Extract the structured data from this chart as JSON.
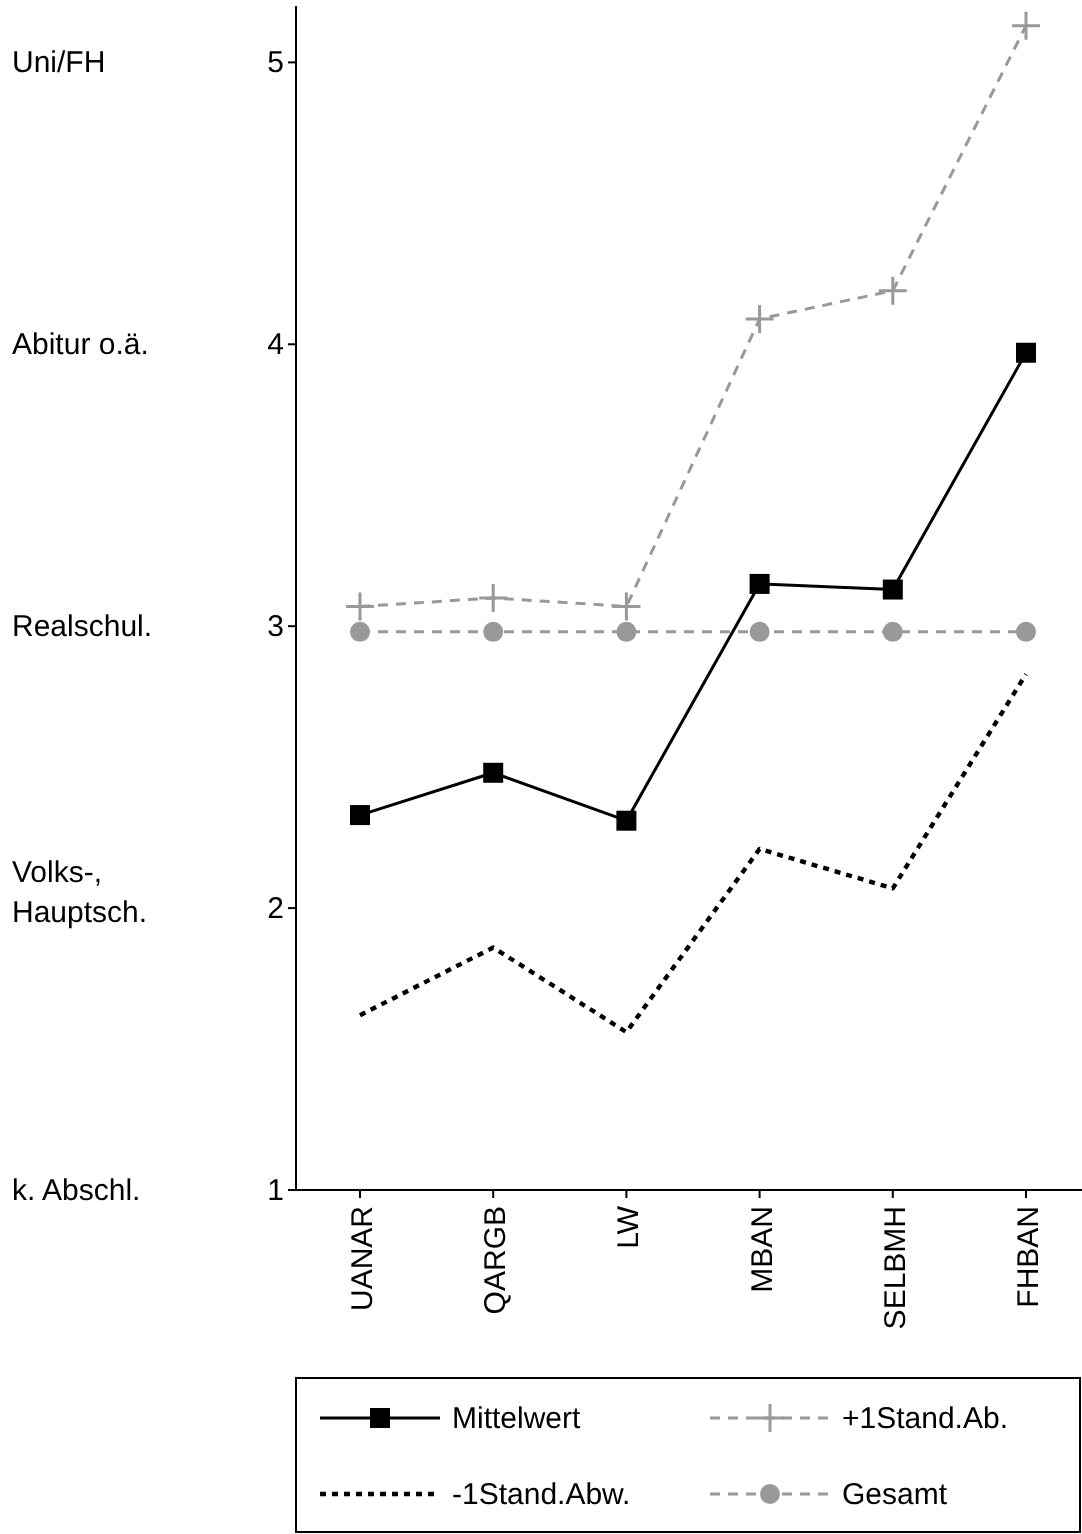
{
  "chart_data": {
    "type": "line",
    "categories": [
      "UANAR",
      "QARGB",
      "LW",
      "MBAN",
      "SELBMH",
      "FHBAN"
    ],
    "ylim": [
      1,
      5.2
    ],
    "yticks": [
      1,
      2,
      3,
      4,
      5
    ],
    "annotations": [
      "Uni/FH",
      "Abitur o.ä.",
      "Realschul.",
      "Volks-,\nHauptsch.",
      "k. Abschl."
    ],
    "series": [
      {
        "name": "Mittelwert",
        "color": "#000000",
        "marker": "square",
        "line_style": "solid",
        "values": [
          2.33,
          2.48,
          2.31,
          3.15,
          3.13,
          3.97
        ]
      },
      {
        "name": "+1Stand.Ab.",
        "color": "#999999",
        "marker": "cross",
        "line_style": "dashed",
        "values": [
          3.07,
          3.1,
          3.07,
          4.09,
          4.19,
          5.13
        ]
      },
      {
        "name": "-1Stand.Abw.",
        "color": "#000000",
        "marker": "none",
        "line_style": "dotted",
        "values": [
          1.62,
          1.86,
          1.56,
          2.21,
          2.07,
          2.83
        ]
      },
      {
        "name": "Gesamt",
        "color": "#999999",
        "marker": "circle",
        "line_style": "dashed",
        "values": [
          2.98,
          2.98,
          2.98,
          2.98,
          2.98,
          2.98
        ]
      }
    ],
    "grid": false,
    "legend": "bottom"
  }
}
